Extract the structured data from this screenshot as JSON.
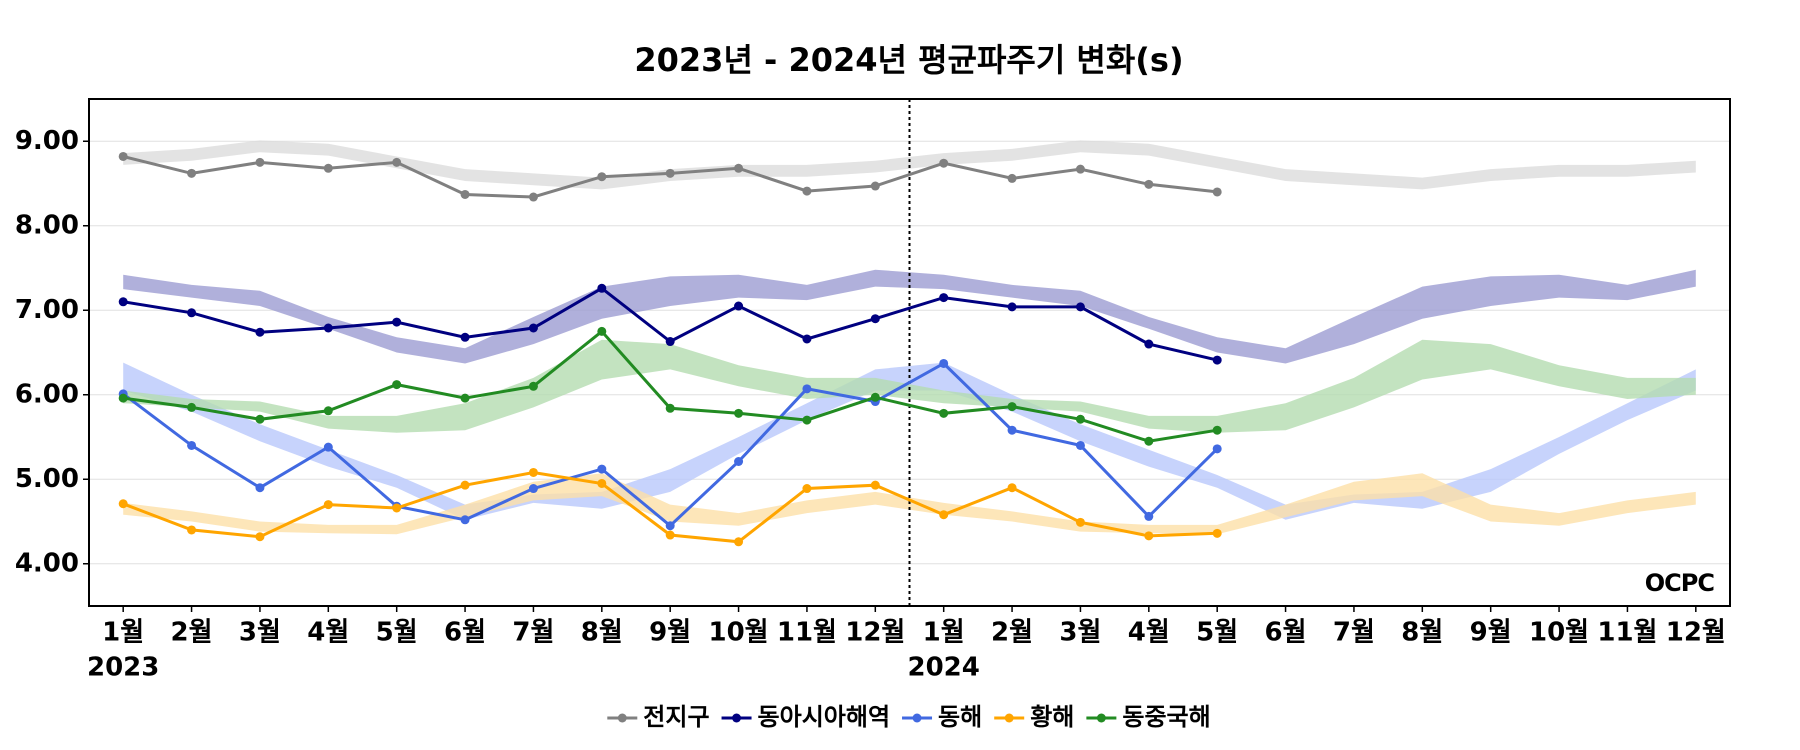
{
  "chart_data": {
    "type": "line",
    "title": "2023년 - 2024년 평균파주기 변화(s)",
    "categories": [
      "1월",
      "2월",
      "3월",
      "4월",
      "5월",
      "6월",
      "7월",
      "8월",
      "9월",
      "10월",
      "11월",
      "12월",
      "1월",
      "2월",
      "3월",
      "4월",
      "5월",
      "6월",
      "7월",
      "8월",
      "9월",
      "10월",
      "11월",
      "12월"
    ],
    "year_labels": [
      "2023",
      null,
      null,
      null,
      null,
      null,
      null,
      null,
      null,
      null,
      null,
      null,
      "2024",
      null,
      null,
      null,
      null,
      null,
      null,
      null,
      null,
      null,
      null,
      null
    ],
    "ylim": [
      3.5,
      9.5
    ],
    "yticks": [
      {
        "value": 4,
        "label": "4.00"
      },
      {
        "value": 5,
        "label": "5.00"
      },
      {
        "value": 6,
        "label": "6.00"
      },
      {
        "value": 7,
        "label": "7.00"
      },
      {
        "value": 8,
        "label": "8.00"
      },
      {
        "value": 9,
        "label": "9.00"
      }
    ],
    "grid": true,
    "legend": "bottom",
    "watermark": "OCPC",
    "series": [
      {
        "name": "전지구",
        "color": "#808080",
        "band_color": "#dcdcdc",
        "values": [
          8.82,
          8.62,
          8.75,
          8.68,
          8.75,
          8.37,
          8.34,
          8.58,
          8.62,
          8.68,
          8.41,
          8.47,
          8.74,
          8.56,
          8.67,
          8.49,
          8.4,
          null,
          null,
          null,
          null,
          null,
          null,
          null
        ],
        "band_low": [
          8.72,
          8.77,
          8.87,
          8.83,
          8.68,
          8.53,
          8.48,
          8.43,
          8.53,
          8.58,
          8.58,
          8.63,
          8.72,
          8.77,
          8.87,
          8.83,
          8.68,
          8.53,
          8.48,
          8.43,
          8.53,
          8.58,
          8.58,
          8.63
        ],
        "band_high": [
          8.86,
          8.91,
          9.01,
          8.97,
          8.82,
          8.67,
          8.62,
          8.57,
          8.67,
          8.72,
          8.72,
          8.77,
          8.86,
          8.91,
          9.01,
          8.97,
          8.82,
          8.67,
          8.62,
          8.57,
          8.67,
          8.72,
          8.72,
          8.77
        ]
      },
      {
        "name": "동아시아해역",
        "color": "#000080",
        "band_color": "#9c9cd2",
        "values": [
          7.1,
          6.97,
          6.74,
          6.79,
          6.86,
          6.68,
          6.79,
          7.26,
          6.63,
          7.05,
          6.66,
          6.9,
          7.15,
          7.04,
          7.04,
          6.6,
          6.41,
          null,
          null,
          null,
          null,
          null,
          null,
          null
        ],
        "band_low": [
          7.25,
          7.15,
          7.05,
          6.78,
          6.5,
          6.37,
          6.6,
          6.9,
          7.05,
          7.15,
          7.12,
          7.28,
          7.25,
          7.15,
          7.05,
          6.78,
          6.5,
          6.37,
          6.6,
          6.9,
          7.05,
          7.15,
          7.12,
          7.28
        ],
        "band_high": [
          7.42,
          7.3,
          7.23,
          6.92,
          6.68,
          6.55,
          6.92,
          7.28,
          7.4,
          7.42,
          7.3,
          7.48,
          7.42,
          7.3,
          7.23,
          6.92,
          6.68,
          6.55,
          6.92,
          7.28,
          7.4,
          7.42,
          7.3,
          7.48
        ]
      },
      {
        "name": "동해",
        "color": "#4169e1",
        "band_color": "#b9c8fb",
        "values": [
          6.01,
          5.4,
          4.9,
          5.38,
          4.68,
          4.52,
          4.89,
          5.12,
          4.45,
          5.21,
          6.07,
          5.92,
          6.37,
          5.58,
          5.4,
          4.56,
          5.36,
          null,
          null,
          null,
          null,
          null,
          null,
          null
        ],
        "band_low": [
          6.05,
          5.8,
          5.45,
          5.15,
          4.9,
          4.52,
          4.72,
          4.65,
          4.85,
          5.3,
          5.7,
          6.05,
          6.05,
          5.8,
          5.45,
          5.15,
          4.9,
          4.52,
          4.72,
          4.65,
          4.85,
          5.3,
          5.7,
          6.05
        ],
        "band_high": [
          6.38,
          6.0,
          5.65,
          5.35,
          5.05,
          4.7,
          4.82,
          4.85,
          5.12,
          5.5,
          5.9,
          6.3,
          6.38,
          6.0,
          5.65,
          5.35,
          5.05,
          4.7,
          4.82,
          4.85,
          5.12,
          5.5,
          5.9,
          6.3
        ]
      },
      {
        "name": "황해",
        "color": "#ffa500",
        "band_color": "#fde0a8",
        "values": [
          4.71,
          4.4,
          4.32,
          4.7,
          4.66,
          4.93,
          5.08,
          4.95,
          4.34,
          4.26,
          4.89,
          4.93,
          4.58,
          4.9,
          4.49,
          4.33,
          4.36,
          null,
          null,
          null,
          null,
          null,
          null,
          null
        ],
        "band_low": [
          4.58,
          4.5,
          4.38,
          4.36,
          4.35,
          4.55,
          4.75,
          4.8,
          4.5,
          4.45,
          4.6,
          4.7,
          4.58,
          4.5,
          4.38,
          4.36,
          4.35,
          4.55,
          4.75,
          4.8,
          4.5,
          4.45,
          4.6,
          4.7
        ],
        "band_high": [
          4.72,
          4.62,
          4.5,
          4.46,
          4.46,
          4.7,
          4.97,
          5.07,
          4.7,
          4.6,
          4.75,
          4.85,
          4.72,
          4.62,
          4.5,
          4.46,
          4.46,
          4.7,
          4.97,
          5.07,
          4.7,
          4.6,
          4.75,
          4.85
        ]
      },
      {
        "name": "동중국해",
        "color": "#228b22",
        "band_color": "#b4dcb0",
        "values": [
          5.96,
          5.85,
          5.71,
          5.81,
          6.12,
          5.96,
          6.1,
          6.75,
          5.84,
          5.78,
          5.7,
          5.97,
          5.78,
          5.86,
          5.71,
          5.45,
          5.58,
          null,
          null,
          null,
          null,
          null,
          null,
          null
        ],
        "band_low": [
          5.9,
          5.85,
          5.8,
          5.6,
          5.55,
          5.58,
          5.85,
          6.18,
          6.3,
          6.1,
          5.95,
          6.0,
          5.9,
          5.85,
          5.8,
          5.6,
          5.55,
          5.58,
          5.85,
          6.18,
          6.3,
          6.1,
          5.95,
          6.0
        ],
        "band_high": [
          6.05,
          5.95,
          5.92,
          5.75,
          5.75,
          5.9,
          6.2,
          6.65,
          6.6,
          6.35,
          6.2,
          6.2,
          6.05,
          5.95,
          5.92,
          5.75,
          5.75,
          5.9,
          6.2,
          6.65,
          6.6,
          6.35,
          6.2,
          6.2
        ]
      }
    ]
  }
}
